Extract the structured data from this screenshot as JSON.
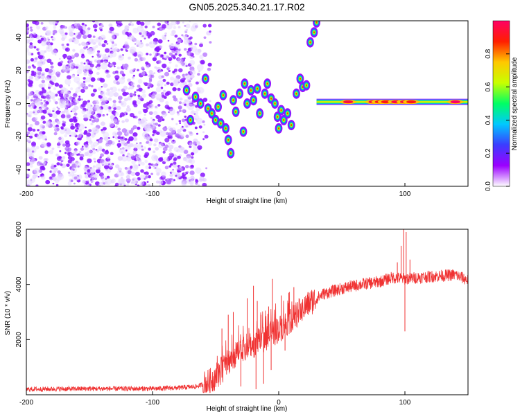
{
  "title": "GN05.2025.340.21.17.R02",
  "chart_data": [
    {
      "type": "heatmap",
      "name": "spectrogram",
      "xlabel": "Height of straight line (km)",
      "ylabel": "Frequency (Hz)",
      "xlim": [
        -200,
        150
      ],
      "ylim": [
        -50,
        50
      ],
      "xticks": [
        -200,
        -100,
        0,
        100
      ],
      "yticks": [
        -40,
        -20,
        0,
        20,
        40
      ],
      "noise_region_x": [
        -200,
        -60
      ],
      "transition_blobs": [
        {
          "x": -73,
          "y": 8
        },
        {
          "x": -70,
          "y": -10
        },
        {
          "x": -66,
          "y": 4
        },
        {
          "x": -62,
          "y": 0
        },
        {
          "x": -58,
          "y": 15
        },
        {
          "x": -56,
          "y": -3
        },
        {
          "x": -53,
          "y": -6
        },
        {
          "x": -50,
          "y": -10
        },
        {
          "x": -48,
          "y": -2
        },
        {
          "x": -46,
          "y": -12
        },
        {
          "x": -44,
          "y": 5
        },
        {
          "x": -42,
          "y": -15
        },
        {
          "x": -40,
          "y": -22
        },
        {
          "x": -38,
          "y": -30
        },
        {
          "x": -36,
          "y": 2
        },
        {
          "x": -34,
          "y": -5
        },
        {
          "x": -31,
          "y": 6
        },
        {
          "x": -28,
          "y": -17
        },
        {
          "x": -27,
          "y": 12
        },
        {
          "x": -25,
          "y": 0
        },
        {
          "x": -22,
          "y": 8
        },
        {
          "x": -20,
          "y": 2
        },
        {
          "x": -17,
          "y": 9
        },
        {
          "x": -15,
          "y": -6
        },
        {
          "x": -11,
          "y": 6
        },
        {
          "x": -9,
          "y": 12
        },
        {
          "x": -6,
          "y": 3
        },
        {
          "x": -3,
          "y": 0
        },
        {
          "x": -1,
          "y": -8
        },
        {
          "x": 0,
          "y": -15
        },
        {
          "x": 2,
          "y": -4
        },
        {
          "x": 4,
          "y": -10
        },
        {
          "x": 7,
          "y": -6
        },
        {
          "x": 10,
          "y": -13
        },
        {
          "x": 14,
          "y": 6
        },
        {
          "x": 17,
          "y": 15
        },
        {
          "x": 19,
          "y": 10
        },
        {
          "x": 22,
          "y": 11
        },
        {
          "x": 25,
          "y": 37
        },
        {
          "x": 28,
          "y": 43
        },
        {
          "x": 30,
          "y": 49
        }
      ],
      "tone_line": {
        "x_start": 30,
        "x_end": 150,
        "y": 1
      },
      "tone_peaks": [
        {
          "x": 55,
          "level": 0.95
        },
        {
          "x": 75,
          "level": 0.95
        },
        {
          "x": 80,
          "level": 0.9
        },
        {
          "x": 85,
          "level": 0.9
        },
        {
          "x": 93,
          "level": 0.95
        },
        {
          "x": 100,
          "level": 0.95
        },
        {
          "x": 105,
          "level": 0.9
        },
        {
          "x": 140,
          "level": 1.0
        }
      ],
      "colorbar": {
        "label": "Normalized spectral amplitude",
        "range": [
          0,
          1
        ],
        "ticks": [
          "0.0",
          "0.2",
          "0.4",
          "0.6",
          "0.8"
        ],
        "colors": [
          "#ffffff",
          "#9b00ff",
          "#3c3cff",
          "#00c8ff",
          "#00ff64",
          "#c8ff00",
          "#ffc800",
          "#ff1e00",
          "#ff0064"
        ]
      }
    },
    {
      "type": "line",
      "name": "snr",
      "xlabel": "Height of straight line (km)",
      "ylabel": "SNR (10 * v/v)",
      "xlim": [
        -200,
        150
      ],
      "ylim": [
        0,
        6000
      ],
      "xticks": [
        -200,
        -100,
        0,
        100
      ],
      "yticks": [
        2000,
        4000,
        6000
      ],
      "color": "#f03232",
      "series_envelope": [
        {
          "x": -200,
          "y": 200
        },
        {
          "x": -150,
          "y": 220
        },
        {
          "x": -100,
          "y": 220
        },
        {
          "x": -80,
          "y": 250
        },
        {
          "x": -65,
          "y": 300
        },
        {
          "x": -55,
          "y": 450
        },
        {
          "x": -45,
          "y": 900
        },
        {
          "x": -38,
          "y": 1300
        },
        {
          "x": -30,
          "y": 1550
        },
        {
          "x": -22,
          "y": 1750
        },
        {
          "x": -15,
          "y": 1950
        },
        {
          "x": -5,
          "y": 2200
        },
        {
          "x": 5,
          "y": 2550
        },
        {
          "x": 15,
          "y": 2950
        },
        {
          "x": 25,
          "y": 3350
        },
        {
          "x": 35,
          "y": 3650
        },
        {
          "x": 50,
          "y": 3850
        },
        {
          "x": 65,
          "y": 4000
        },
        {
          "x": 80,
          "y": 4100
        },
        {
          "x": 90,
          "y": 4250
        },
        {
          "x": 100,
          "y": 4200
        },
        {
          "x": 110,
          "y": 4250
        },
        {
          "x": 125,
          "y": 4300
        },
        {
          "x": 140,
          "y": 4350
        },
        {
          "x": 150,
          "y": 4150
        }
      ],
      "spikes": [
        {
          "x": -45,
          "y": 2400
        },
        {
          "x": -40,
          "y": 2900
        },
        {
          "x": -36,
          "y": 3000
        },
        {
          "x": -25,
          "y": 3500
        },
        {
          "x": -20,
          "y": 3950
        },
        {
          "x": -17,
          "y": 3400
        },
        {
          "x": -14,
          "y": 2900
        },
        {
          "x": -8,
          "y": 3200
        },
        {
          "x": -5,
          "y": 4200
        },
        {
          "x": 2,
          "y": 3600
        },
        {
          "x": 8,
          "y": 3700
        },
        {
          "x": 12,
          "y": 3900
        },
        {
          "x": 94,
          "y": 4800
        },
        {
          "x": 97,
          "y": 5400
        },
        {
          "x": 99,
          "y": 6000
        },
        {
          "x": 101,
          "y": 5900
        },
        {
          "x": 104,
          "y": 4900
        }
      ],
      "dips": [
        {
          "x": -30,
          "y": 300
        },
        {
          "x": -18,
          "y": 200
        },
        {
          "x": -12,
          "y": 400
        },
        {
          "x": -6,
          "y": 900
        },
        {
          "x": 5,
          "y": 1600
        },
        {
          "x": 100,
          "y": 2300
        }
      ]
    }
  ]
}
